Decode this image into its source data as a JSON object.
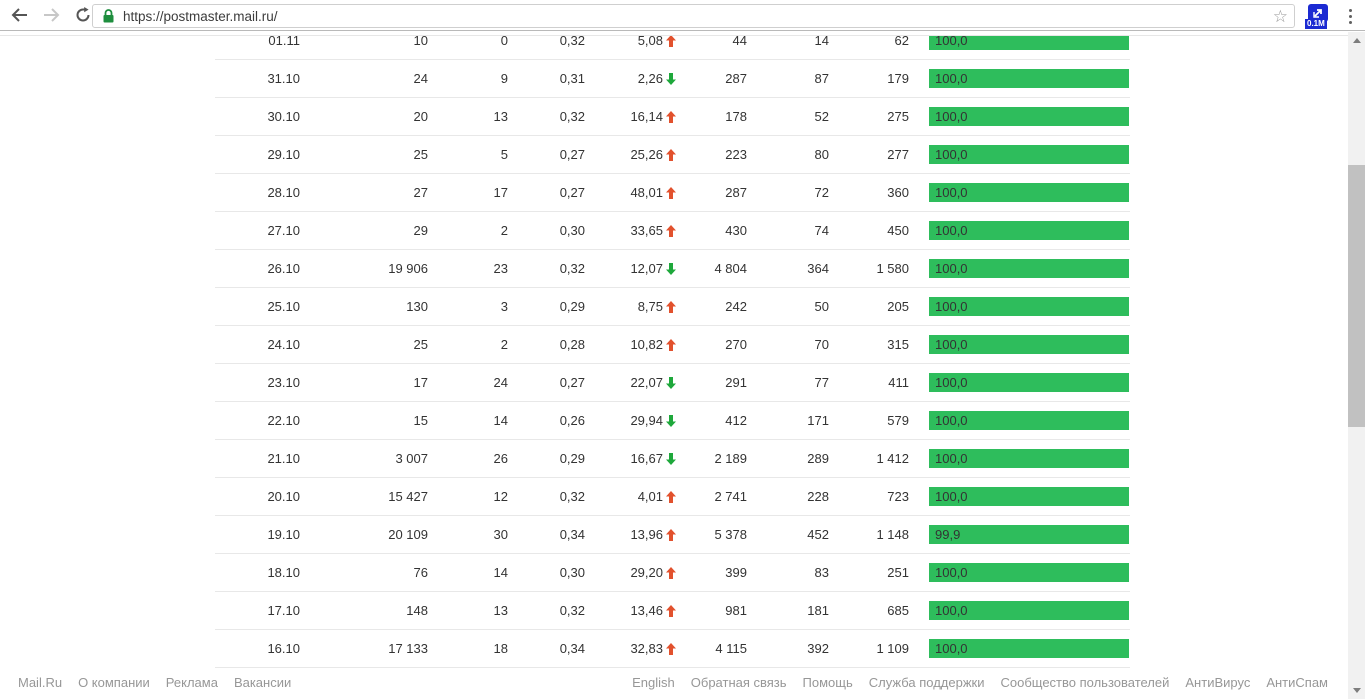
{
  "browser": {
    "url": "https://postmaster.mail.ru/",
    "back_label": "back",
    "forward_label": "forward",
    "reload_label": "reload",
    "bookmark_label": "bookmark-star",
    "extension_badge": "0.1M",
    "menu_label": "menu"
  },
  "table": {
    "rows": [
      {
        "date": "01.11",
        "c1": "10",
        "c2": "0",
        "c3": "0,32",
        "delta": "5,08",
        "trend": "up",
        "c4": "44",
        "c5": "14",
        "c6": "62",
        "bar": "100,0",
        "bar_pct": 100
      },
      {
        "date": "31.10",
        "c1": "24",
        "c2": "9",
        "c3": "0,31",
        "delta": "2,26",
        "trend": "down",
        "c4": "287",
        "c5": "87",
        "c6": "179",
        "bar": "100,0",
        "bar_pct": 100
      },
      {
        "date": "30.10",
        "c1": "20",
        "c2": "13",
        "c3": "0,32",
        "delta": "16,14",
        "trend": "up",
        "c4": "178",
        "c5": "52",
        "c6": "275",
        "bar": "100,0",
        "bar_pct": 100
      },
      {
        "date": "29.10",
        "c1": "25",
        "c2": "5",
        "c3": "0,27",
        "delta": "25,26",
        "trend": "up",
        "c4": "223",
        "c5": "80",
        "c6": "277",
        "bar": "100,0",
        "bar_pct": 100
      },
      {
        "date": "28.10",
        "c1": "27",
        "c2": "17",
        "c3": "0,27",
        "delta": "48,01",
        "trend": "up",
        "c4": "287",
        "c5": "72",
        "c6": "360",
        "bar": "100,0",
        "bar_pct": 100
      },
      {
        "date": "27.10",
        "c1": "29",
        "c2": "2",
        "c3": "0,30",
        "delta": "33,65",
        "trend": "up",
        "c4": "430",
        "c5": "74",
        "c6": "450",
        "bar": "100,0",
        "bar_pct": 100
      },
      {
        "date": "26.10",
        "c1": "19 906",
        "c2": "23",
        "c3": "0,32",
        "delta": "12,07",
        "trend": "down",
        "c4": "4 804",
        "c5": "364",
        "c6": "1 580",
        "bar": "100,0",
        "bar_pct": 100
      },
      {
        "date": "25.10",
        "c1": "130",
        "c2": "3",
        "c3": "0,29",
        "delta": "8,75",
        "trend": "up",
        "c4": "242",
        "c5": "50",
        "c6": "205",
        "bar": "100,0",
        "bar_pct": 100
      },
      {
        "date": "24.10",
        "c1": "25",
        "c2": "2",
        "c3": "0,28",
        "delta": "10,82",
        "trend": "up",
        "c4": "270",
        "c5": "70",
        "c6": "315",
        "bar": "100,0",
        "bar_pct": 100
      },
      {
        "date": "23.10",
        "c1": "17",
        "c2": "24",
        "c3": "0,27",
        "delta": "22,07",
        "trend": "down",
        "c4": "291",
        "c5": "77",
        "c6": "411",
        "bar": "100,0",
        "bar_pct": 100
      },
      {
        "date": "22.10",
        "c1": "15",
        "c2": "14",
        "c3": "0,26",
        "delta": "29,94",
        "trend": "down",
        "c4": "412",
        "c5": "171",
        "c6": "579",
        "bar": "100,0",
        "bar_pct": 100
      },
      {
        "date": "21.10",
        "c1": "3 007",
        "c2": "26",
        "c3": "0,29",
        "delta": "16,67",
        "trend": "down",
        "c4": "2 189",
        "c5": "289",
        "c6": "1 412",
        "bar": "100,0",
        "bar_pct": 100
      },
      {
        "date": "20.10",
        "c1": "15 427",
        "c2": "12",
        "c3": "0,32",
        "delta": "4,01",
        "trend": "up",
        "c4": "2 741",
        "c5": "228",
        "c6": "723",
        "bar": "100,0",
        "bar_pct": 100
      },
      {
        "date": "19.10",
        "c1": "20 109",
        "c2": "30",
        "c3": "0,34",
        "delta": "13,96",
        "trend": "up",
        "c4": "5 378",
        "c5": "452",
        "c6": "1 148",
        "bar": "99,9",
        "bar_pct": 99.9
      },
      {
        "date": "18.10",
        "c1": "76",
        "c2": "14",
        "c3": "0,30",
        "delta": "29,20",
        "trend": "up",
        "c4": "399",
        "c5": "83",
        "c6": "251",
        "bar": "100,0",
        "bar_pct": 100
      },
      {
        "date": "17.10",
        "c1": "148",
        "c2": "13",
        "c3": "0,32",
        "delta": "13,46",
        "trend": "up",
        "c4": "981",
        "c5": "181",
        "c6": "685",
        "bar": "100,0",
        "bar_pct": 100
      },
      {
        "date": "16.10",
        "c1": "17 133",
        "c2": "18",
        "c3": "0,34",
        "delta": "32,83",
        "trend": "up",
        "c4": "4 115",
        "c5": "392",
        "c6": "1 109",
        "bar": "100,0",
        "bar_pct": 100
      }
    ]
  },
  "footer": {
    "left": [
      "Mail.Ru",
      "О компании",
      "Реклама",
      "Вакансии"
    ],
    "right": [
      "English",
      "Обратная связь",
      "Помощь",
      "Служба поддержки",
      "Сообщество пользователей",
      "АнтиВирус",
      "АнтиСпам"
    ]
  },
  "colors": {
    "bar_green": "#2ebd5c",
    "trend_up": "#e2512d",
    "trend_down": "#1ea83b",
    "row_text": "#333333",
    "footer_link": "#979797",
    "padlock_green": "#1e8e3e",
    "extension_blue": "#1b2ad2"
  }
}
